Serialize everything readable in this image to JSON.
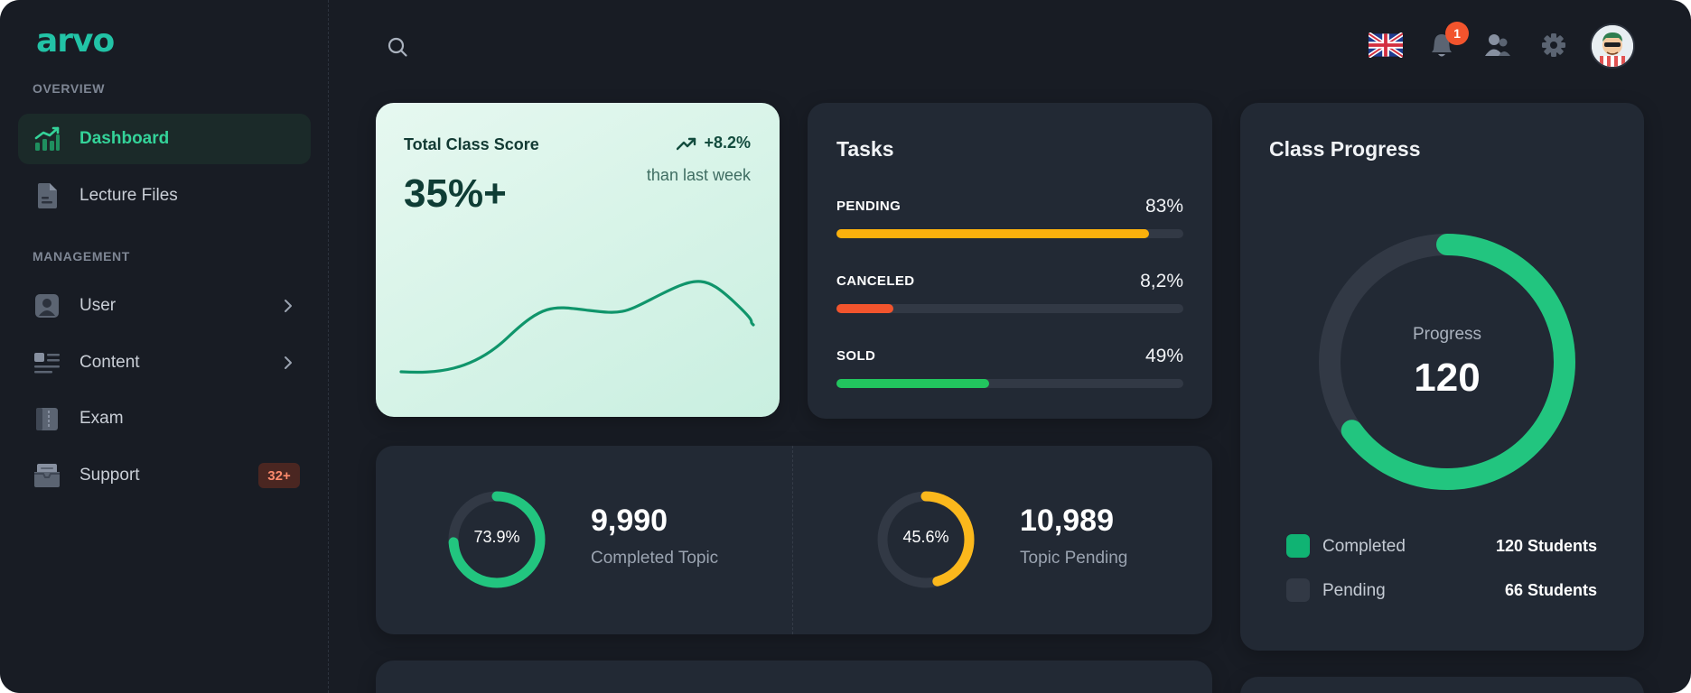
{
  "app": {
    "logo_text": "arvo",
    "brand_color": "#22c3a6"
  },
  "sidebar": {
    "sections": [
      {
        "title": "OVERVIEW"
      },
      {
        "title": "MANAGEMENT"
      }
    ],
    "items": [
      {
        "label": "Dashboard",
        "icon": "chart-trend-icon",
        "active": true
      },
      {
        "label": "Lecture Files",
        "icon": "file-icon"
      },
      {
        "label": "User",
        "icon": "user-icon",
        "chevron": true
      },
      {
        "label": "Content",
        "icon": "content-list-icon",
        "chevron": true
      },
      {
        "label": "Exam",
        "icon": "book-icon"
      },
      {
        "label": "Support",
        "icon": "inbox-icon",
        "badge": "32+"
      }
    ]
  },
  "topbar": {
    "search_icon": "search-icon",
    "language_icon": "uk-flag-icon",
    "notifications": {
      "icon": "bell-icon",
      "count": "1"
    },
    "users_icon": "users-icon",
    "settings_icon": "gear-icon",
    "avatar_icon": "avatar-icon"
  },
  "score_card": {
    "title": "Total Class Score",
    "value": "35%+",
    "delta": "+8.2%",
    "delta_sub": "than last week",
    "trend_icon": "trend-up-icon",
    "line_color": "#10956b"
  },
  "tasks": {
    "title": "Tasks",
    "rows": [
      {
        "name": "PENDING",
        "percent_text": "83%",
        "fill": 0.9,
        "color": "#fbb10c"
      },
      {
        "name": "CANCELED",
        "percent_text": "8,2%",
        "fill": 0.165,
        "color": "#f2542d"
      },
      {
        "name": "SOLD",
        "percent_text": "49%",
        "fill": 0.44,
        "color": "#22c55e"
      }
    ]
  },
  "class_progress": {
    "title": "Class Progress",
    "ring_label": "Progress",
    "ring_value": "120",
    "ring_fraction": 0.65,
    "ring_color": "#22c57f",
    "ring_track": "#323945",
    "legend": [
      {
        "name": "Completed",
        "value": "120 Students",
        "color": "#10b373"
      },
      {
        "name": "Pending",
        "value": "66 Students",
        "color": "#323945"
      }
    ]
  },
  "stats": [
    {
      "ring_text": "73.9%",
      "fraction": 0.739,
      "color": "#22c57f",
      "value": "9,990",
      "label": "Completed Topic"
    },
    {
      "ring_text": "45.6%",
      "fraction": 0.456,
      "color": "#fbb81c",
      "value": "10,989",
      "label": "Topic Pending"
    }
  ]
}
